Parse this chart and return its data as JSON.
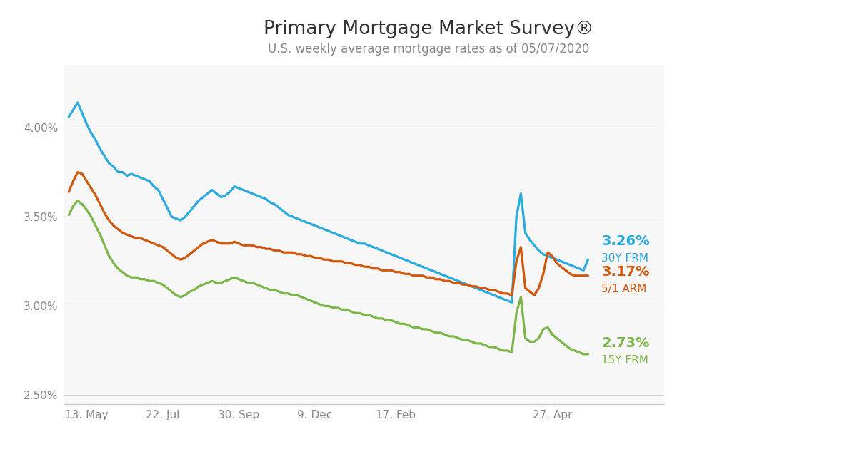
{
  "title": "Primary Mortgage Market Survey®",
  "subtitle": "U.S. weekly average mortgage rates as of 05/07/2020",
  "title_fontsize": 19,
  "subtitle_fontsize": 12,
  "fig_bg_color": "#ffffff",
  "plot_bg_color": "#f7f7f8",
  "grid_color": "#d8d8dc",
  "bottom_line_color": "#c8ccd8",
  "label_color": "#888888",
  "colors": {
    "30Y FRM": "#29aae1",
    "5/1 ARM": "#d2570a",
    "15Y FRM": "#7ab648"
  },
  "end_labels": {
    "30Y FRM": {
      "value": "3.26%",
      "label": "30Y FRM"
    },
    "5/1 ARM": {
      "value": "3.17%",
      "label": "5/1 ARM"
    },
    "15Y FRM": {
      "value": "2.73%",
      "label": "15Y FRM"
    }
  },
  "ylim": [
    2.45,
    4.35
  ],
  "yticks": [
    2.5,
    3.0,
    3.5,
    4.0
  ],
  "x_tick_labels": [
    "13. May",
    "22. Jul",
    "30. Sep",
    "9. Dec",
    "17. Feb",
    "27. Apr"
  ],
  "series_30Y": [
    4.06,
    4.1,
    4.14,
    4.08,
    4.02,
    3.97,
    3.93,
    3.88,
    3.84,
    3.8,
    3.78,
    3.75,
    3.75,
    3.73,
    3.74,
    3.73,
    3.72,
    3.71,
    3.7,
    3.67,
    3.65,
    3.6,
    3.55,
    3.5,
    3.49,
    3.48,
    3.5,
    3.53,
    3.56,
    3.59,
    3.61,
    3.63,
    3.65,
    3.63,
    3.61,
    3.62,
    3.64,
    3.67,
    3.66,
    3.65,
    3.64,
    3.63,
    3.62,
    3.61,
    3.6,
    3.58,
    3.57,
    3.55,
    3.53,
    3.51,
    3.5,
    3.49,
    3.48,
    3.47,
    3.46,
    3.45,
    3.44,
    3.43,
    3.42,
    3.41,
    3.4,
    3.39,
    3.38,
    3.37,
    3.36,
    3.35,
    3.35,
    3.34,
    3.33,
    3.32,
    3.31,
    3.3,
    3.29,
    3.28,
    3.27,
    3.26,
    3.25,
    3.24,
    3.23,
    3.22,
    3.21,
    3.2,
    3.19,
    3.18,
    3.17,
    3.16,
    3.15,
    3.14,
    3.13,
    3.12,
    3.11,
    3.1,
    3.09,
    3.08,
    3.07,
    3.06,
    3.05,
    3.04,
    3.03,
    3.02,
    3.5,
    3.63,
    3.41,
    3.37,
    3.34,
    3.31,
    3.29,
    3.28,
    3.27,
    3.26,
    3.25,
    3.24,
    3.23,
    3.22,
    3.21,
    3.2,
    3.26
  ],
  "series_5ARM": [
    3.64,
    3.7,
    3.75,
    3.74,
    3.7,
    3.66,
    3.62,
    3.57,
    3.52,
    3.48,
    3.45,
    3.43,
    3.41,
    3.4,
    3.39,
    3.38,
    3.38,
    3.37,
    3.36,
    3.35,
    3.34,
    3.33,
    3.31,
    3.29,
    3.27,
    3.26,
    3.27,
    3.29,
    3.31,
    3.33,
    3.35,
    3.36,
    3.37,
    3.36,
    3.35,
    3.35,
    3.35,
    3.36,
    3.35,
    3.34,
    3.34,
    3.34,
    3.33,
    3.33,
    3.32,
    3.32,
    3.31,
    3.31,
    3.3,
    3.3,
    3.3,
    3.29,
    3.29,
    3.28,
    3.28,
    3.27,
    3.27,
    3.26,
    3.26,
    3.25,
    3.25,
    3.25,
    3.24,
    3.24,
    3.23,
    3.23,
    3.22,
    3.22,
    3.21,
    3.21,
    3.2,
    3.2,
    3.2,
    3.19,
    3.19,
    3.18,
    3.18,
    3.17,
    3.17,
    3.17,
    3.16,
    3.16,
    3.15,
    3.15,
    3.14,
    3.14,
    3.13,
    3.13,
    3.12,
    3.12,
    3.11,
    3.11,
    3.1,
    3.1,
    3.09,
    3.09,
    3.08,
    3.07,
    3.07,
    3.06,
    3.25,
    3.33,
    3.1,
    3.08,
    3.06,
    3.1,
    3.18,
    3.3,
    3.28,
    3.24,
    3.22,
    3.2,
    3.18,
    3.17,
    3.17,
    3.17,
    3.17
  ],
  "series_15Y": [
    3.51,
    3.56,
    3.59,
    3.57,
    3.54,
    3.5,
    3.45,
    3.4,
    3.34,
    3.28,
    3.24,
    3.21,
    3.19,
    3.17,
    3.16,
    3.16,
    3.15,
    3.15,
    3.14,
    3.14,
    3.13,
    3.12,
    3.1,
    3.08,
    3.06,
    3.05,
    3.06,
    3.08,
    3.09,
    3.11,
    3.12,
    3.13,
    3.14,
    3.13,
    3.13,
    3.14,
    3.15,
    3.16,
    3.15,
    3.14,
    3.13,
    3.13,
    3.12,
    3.11,
    3.1,
    3.09,
    3.09,
    3.08,
    3.07,
    3.07,
    3.06,
    3.06,
    3.05,
    3.04,
    3.03,
    3.02,
    3.01,
    3.0,
    3.0,
    2.99,
    2.99,
    2.98,
    2.98,
    2.97,
    2.96,
    2.96,
    2.95,
    2.95,
    2.94,
    2.93,
    2.93,
    2.92,
    2.92,
    2.91,
    2.9,
    2.9,
    2.89,
    2.88,
    2.88,
    2.87,
    2.87,
    2.86,
    2.85,
    2.85,
    2.84,
    2.83,
    2.83,
    2.82,
    2.81,
    2.81,
    2.8,
    2.79,
    2.79,
    2.78,
    2.77,
    2.77,
    2.76,
    2.75,
    2.75,
    2.74,
    2.96,
    3.05,
    2.82,
    2.8,
    2.8,
    2.82,
    2.87,
    2.88,
    2.84,
    2.82,
    2.8,
    2.78,
    2.76,
    2.75,
    2.74,
    2.73,
    2.73
  ]
}
